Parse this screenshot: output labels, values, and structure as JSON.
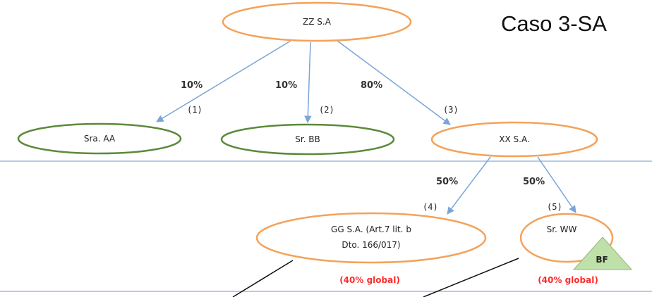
{
  "title": "Caso 3-SA",
  "nodes": {
    "zz": "ZZ S.A",
    "aa": "Sra. AA",
    "bb": "Sr. BB",
    "xx": "XX S.A.",
    "gg_line1": "GG S.A. (Art.7 lit. b",
    "gg_line2": "Dto. 166/017)",
    "ww": "Sr. WW"
  },
  "edges": {
    "e1_pct": "10%",
    "e1_num": "(1)",
    "e2_pct": "10%",
    "e2_num": "(2)",
    "e3_pct": "80%",
    "e3_num": "(3)",
    "e4_pct": "50%",
    "e4_num": "(4)",
    "e5_pct": "50%",
    "e5_num": "(5)"
  },
  "notes": {
    "gg": "(40% global)",
    "ww": "(40% global)"
  },
  "badge": "BF",
  "colors": {
    "orange": "#f4a25a",
    "green": "#5b8a3a",
    "arrow": "#7aa5d6",
    "divider": "#9bbce0",
    "note": "#ff2a2a",
    "badge_fill": "#bfe0a8"
  }
}
